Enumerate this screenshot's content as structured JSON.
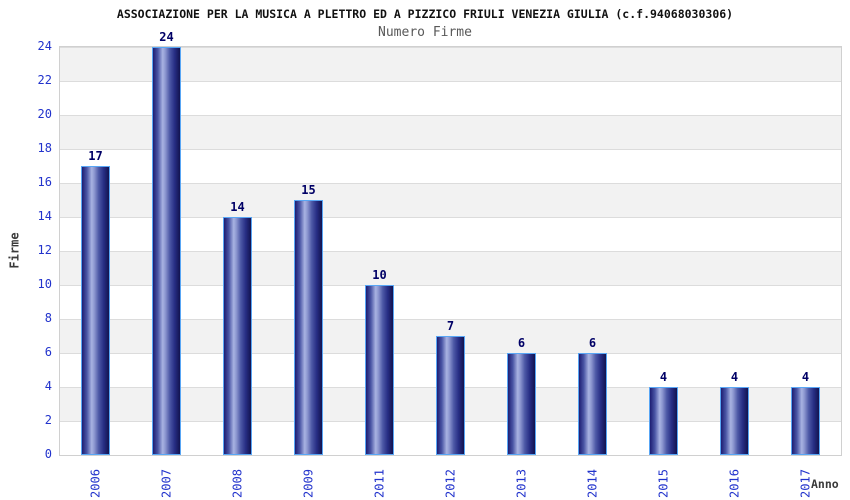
{
  "title": "ASSOCIAZIONE PER LA MUSICA A PLETTRO ED A PIZZICO FRIULI VENEZIA GIULIA (c.f.94068030306)",
  "subtitle": "Numero Firme",
  "chart_data": {
    "type": "bar",
    "categories": [
      "2006",
      "2007",
      "2008",
      "2009",
      "2011",
      "2012",
      "2013",
      "2014",
      "2015",
      "2016",
      "2017"
    ],
    "values": [
      17,
      24,
      14,
      15,
      10,
      7,
      6,
      6,
      4,
      4,
      4
    ],
    "title": "Numero Firme",
    "xlabel": "Anno",
    "ylabel": "Firme",
    "ylim": [
      0,
      24
    ],
    "yticks": [
      0,
      2,
      4,
      6,
      8,
      10,
      12,
      14,
      16,
      18,
      20,
      22,
      24
    ],
    "grid": "horizontal-bands-every-2-units",
    "legend": "none",
    "value_labels": "above-bars",
    "x_tick_rotation": -90
  },
  "colors": {
    "tick_label": "#2233cc",
    "value_label": "#000066",
    "bar_border": "#58a6f5",
    "bar_dark": "#1d1d72",
    "bar_highlight": "#a9b3e2",
    "band_gray": "#f2f2f2",
    "band_white": "#ffffff",
    "plot_border": "#d0d0d0",
    "title_color": "#111111",
    "subtitle_color": "#595959",
    "axis_title_color": "#3a3a3a"
  }
}
